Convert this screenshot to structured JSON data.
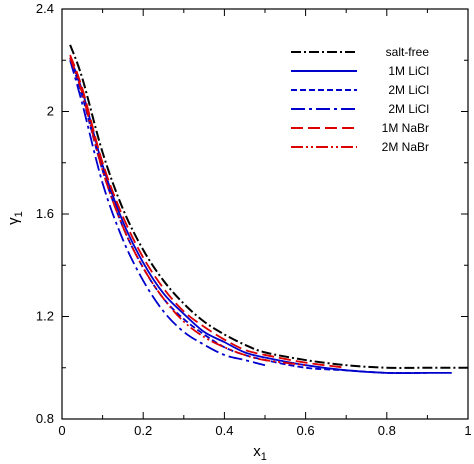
{
  "chart_data": {
    "type": "line",
    "title": "",
    "xlabel": "x",
    "xlabel_sub": "1",
    "ylabel": "γ",
    "ylabel_sub": "1",
    "xlim": [
      0,
      1
    ],
    "ylim": [
      0.8,
      2.4
    ],
    "xticks": [
      0,
      0.2,
      0.4,
      0.6,
      0.8,
      1
    ],
    "xtick_labels": [
      "0",
      "0.2",
      "0.4",
      "0.6",
      "0.8",
      "1"
    ],
    "yticks": [
      0.8,
      1.2,
      1.6,
      2,
      2.4
    ],
    "ytick_labels": [
      "0.8",
      "1.2",
      "1.6",
      "2",
      "2.4"
    ],
    "grid": false,
    "legend_position": "top-right",
    "series": [
      {
        "name": "salt-free",
        "color": "#000000",
        "dash": "dashdot",
        "x": [
          0.02,
          0.05,
          0.1,
          0.15,
          0.2,
          0.25,
          0.3,
          0.35,
          0.4,
          0.45,
          0.5,
          0.6,
          0.7,
          0.8,
          0.9,
          1.0
        ],
        "y": [
          2.26,
          2.13,
          1.84,
          1.62,
          1.46,
          1.34,
          1.25,
          1.18,
          1.13,
          1.09,
          1.06,
          1.03,
          1.01,
          1.0,
          1.0,
          1.0
        ]
      },
      {
        "name": "1M LiCl",
        "color": "#0000cc",
        "dash": "solid",
        "x": [
          0.02,
          0.05,
          0.1,
          0.15,
          0.2,
          0.25,
          0.3,
          0.35,
          0.4,
          0.45,
          0.5,
          0.6,
          0.7,
          0.8,
          0.9,
          0.96
        ],
        "y": [
          2.21,
          2.08,
          1.79,
          1.57,
          1.41,
          1.29,
          1.21,
          1.14,
          1.1,
          1.06,
          1.04,
          1.01,
          0.99,
          0.98,
          0.98,
          0.98
        ]
      },
      {
        "name": "2M LiCl",
        "color": "#0000cc",
        "dash": "dashed",
        "x": [
          0.02,
          0.05,
          0.1,
          0.15,
          0.2,
          0.25,
          0.3,
          0.35,
          0.4,
          0.45,
          0.5,
          0.6,
          0.7,
          0.8,
          0.9
        ],
        "y": [
          2.21,
          2.06,
          1.77,
          1.55,
          1.39,
          1.27,
          1.19,
          1.13,
          1.08,
          1.05,
          1.03,
          1.0,
          0.99,
          0.98,
          0.98
        ]
      },
      {
        "name": "2M LiCl",
        "color": "#0000cc",
        "dash": "longdashdot",
        "x": [
          0.02,
          0.05,
          0.1,
          0.15,
          0.2,
          0.25,
          0.3,
          0.35,
          0.4,
          0.45,
          0.5
        ],
        "y": [
          2.2,
          2.03,
          1.72,
          1.5,
          1.34,
          1.22,
          1.14,
          1.09,
          1.05,
          1.03,
          1.01
        ]
      },
      {
        "name": "1M NaBr",
        "color": "#dd0000",
        "dash": "longdash",
        "x": [
          0.02,
          0.05,
          0.1,
          0.15,
          0.2,
          0.25,
          0.3,
          0.35,
          0.4,
          0.45,
          0.5,
          0.6,
          0.7
        ],
        "y": [
          2.22,
          2.09,
          1.8,
          1.59,
          1.43,
          1.31,
          1.22,
          1.16,
          1.11,
          1.07,
          1.05,
          1.02,
          1.0
        ]
      },
      {
        "name": "2M NaBr",
        "color": "#dd0000",
        "dash": "dashdotdot",
        "x": [
          0.02,
          0.05,
          0.1,
          0.15,
          0.2,
          0.25,
          0.3,
          0.35,
          0.4,
          0.45,
          0.5,
          0.6
        ],
        "y": [
          2.21,
          2.07,
          1.77,
          1.55,
          1.39,
          1.27,
          1.18,
          1.12,
          1.08,
          1.05,
          1.03,
          1.01
        ]
      }
    ]
  }
}
